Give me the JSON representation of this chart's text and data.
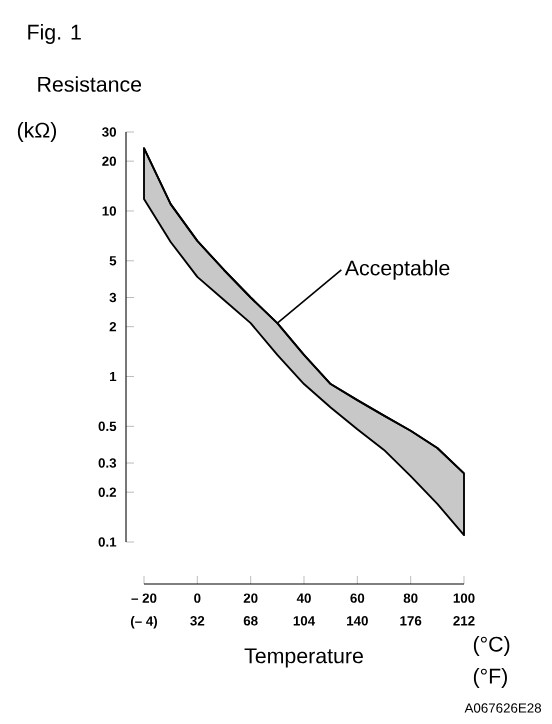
{
  "chart_data": {
    "type": "line",
    "title": "Fig. 1",
    "ylabel": "Resistance",
    "xlabel": "Temperature",
    "log": "y",
    "x": [
      -20,
      -10,
      0,
      10,
      20,
      30,
      40,
      50,
      60,
      70,
      80,
      90,
      100
    ],
    "series": [
      {
        "color": "#000000",
        "values": [
          24,
          11,
          6.6,
          4.4,
          3.0,
          2.1,
          1.35,
          0.9,
          0.72,
          0.58,
          0.47,
          0.37,
          0.26
        ],
        "upper": [
          24,
          11,
          6.6,
          4.4,
          3.0,
          2.1,
          1.35,
          0.9,
          0.72,
          0.58,
          0.47,
          0.37,
          0.26
        ],
        "lower": [
          11.8,
          6.5,
          4.0,
          2.9,
          2.1,
          1.35,
          0.9,
          0.65,
          0.48,
          0.36,
          0.25,
          0.17,
          0.11
        ]
      }
    ],
    "xlim": [
      -20,
      100
    ],
    "xticks": [
      {
        "value": -20,
        "label": "– 20"
      },
      0,
      20,
      40,
      60,
      80,
      100
    ],
    "x2lim": [
      -4,
      212
    ],
    "x2ticks": [
      {
        "value": -4,
        "label": "(– 4)"
      },
      32,
      68,
      104,
      140,
      176,
      212
    ],
    "ylim": [
      0.1,
      30
    ],
    "yticks": [
      0.1,
      0.2,
      0.3,
      0.5,
      1,
      2,
      3,
      5,
      10,
      20,
      30
    ],
    "annotations": [
      {
        "text": "Acceptable",
        "x": 30,
        "y": 2.1
      },
      "(kΩ)",
      "(°C)",
      "(°F)",
      "A067626E28"
    ]
  }
}
